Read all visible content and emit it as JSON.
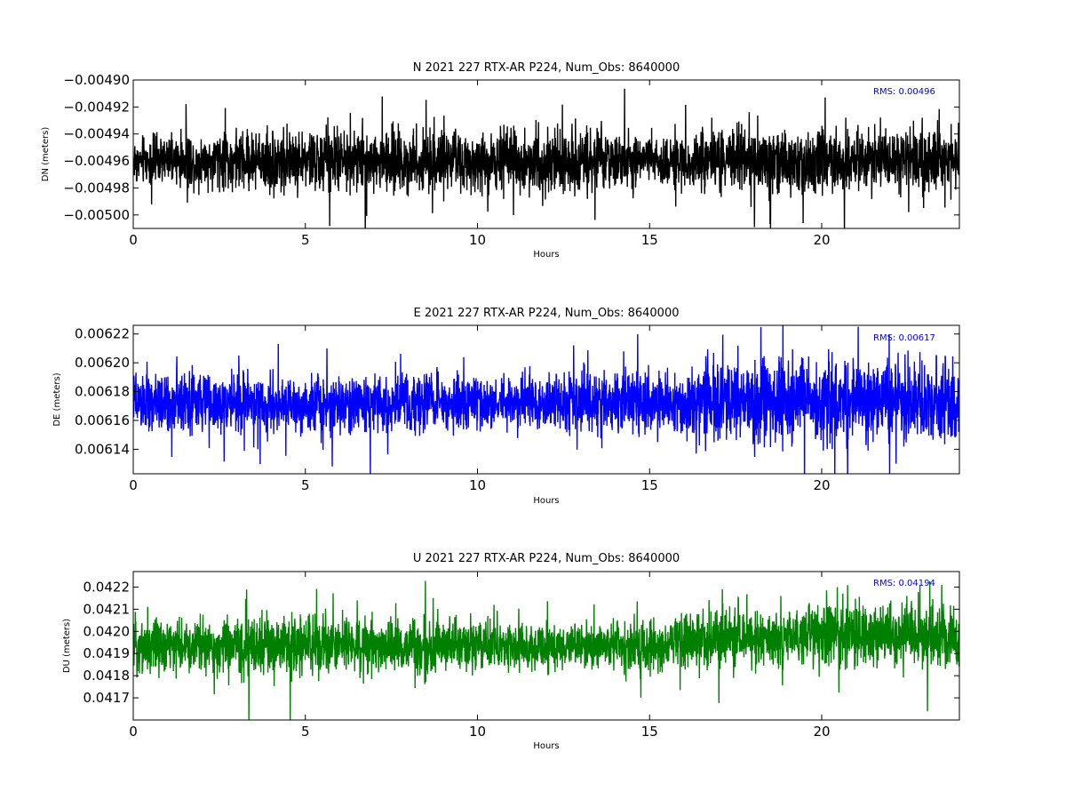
{
  "chart_data": [
    {
      "type": "line",
      "title": "N 2021 227 RTX-AR  P224, Num_Obs: 8640000",
      "xlabel": "Hours",
      "ylabel": "DN (meters)",
      "xlim": [
        0,
        24
      ],
      "ylim": [
        -0.00501,
        -0.0049
      ],
      "xticks": [
        0,
        5,
        10,
        15,
        20
      ],
      "xtick_labels": [
        "0",
        "5",
        "10",
        "15",
        "20"
      ],
      "yticks": [
        -0.005,
        -0.00498,
        -0.00496,
        -0.00494,
        -0.00492,
        -0.0049
      ],
      "ytick_labels": [
        "−0.00500",
        "−0.00498",
        "−0.00496",
        "−0.00494",
        "−0.00492",
        "−0.00490"
      ],
      "annotation": "RMS:  0.00496",
      "grid": false,
      "series": [
        {
          "color": "#000000",
          "x": [
            0,
            1,
            2,
            3,
            4,
            5,
            6,
            7,
            8,
            9,
            10,
            11,
            12,
            13,
            14,
            15,
            16,
            17,
            18,
            19,
            20,
            21,
            22,
            23,
            24
          ],
          "y": [
            -0.00496,
            -0.00496,
            -0.00496,
            -0.00496,
            -0.00496,
            -0.00496,
            -0.00496,
            -0.00496,
            -0.00496,
            -0.00496,
            -0.00496,
            -0.00496,
            -0.00496,
            -0.00496,
            -0.00496,
            -0.00496,
            -0.00496,
            -0.00496,
            -0.00496,
            -0.00496,
            -0.00496,
            -0.00496,
            -0.00496,
            -0.00496,
            -0.00496
          ],
          "spread": [
            2.4e-05,
            2.5e-05,
            2.6e-05,
            3e-05,
            3.1e-05,
            3.2e-05,
            3.1e-05,
            3.1e-05,
            3.1e-05,
            3.2e-05,
            3.1e-05,
            3.1e-05,
            3.2e-05,
            3.2e-05,
            3.1e-05,
            2.4e-05,
            2.6e-05,
            3.1e-05,
            3.2e-05,
            3.3e-05,
            3.3e-05,
            3e-05,
            3e-05,
            3.1e-05,
            3.2e-05
          ]
        }
      ]
    },
    {
      "type": "line",
      "title": "E 2021 227 RTX-AR  P224, Num_Obs: 8640000",
      "xlabel": "Hours",
      "ylabel": "DE (meters)",
      "xlim": [
        0,
        24
      ],
      "ylim": [
        0.006123,
        0.006226
      ],
      "xticks": [
        0,
        5,
        10,
        15,
        20
      ],
      "xtick_labels": [
        "0",
        "5",
        "10",
        "15",
        "20"
      ],
      "yticks": [
        0.00614,
        0.00616,
        0.00618,
        0.0062,
        0.00622
      ],
      "ytick_labels": [
        "0.00614",
        "0.00616",
        "0.00618",
        "0.00620",
        "0.00622"
      ],
      "annotation": "RMS:  0.00617",
      "grid": false,
      "series": [
        {
          "color": "#0000ff",
          "x": [
            0,
            1,
            2,
            3,
            4,
            5,
            6,
            7,
            8,
            9,
            10,
            11,
            12,
            13,
            14,
            15,
            16,
            17,
            18,
            19,
            20,
            21,
            22,
            23,
            24
          ],
          "y": [
            0.006172,
            0.006172,
            0.006172,
            0.006172,
            0.006172,
            0.006172,
            0.006172,
            0.006172,
            0.006172,
            0.006172,
            0.006172,
            0.006172,
            0.006172,
            0.006172,
            0.006172,
            0.006172,
            0.006172,
            0.006174,
            0.006174,
            0.006174,
            0.006174,
            0.006174,
            0.006174,
            0.006174,
            0.006174
          ],
          "spread": [
            2.6e-05,
            2.7e-05,
            2.7e-05,
            2.8e-05,
            2.7e-05,
            2.7e-05,
            2.6e-05,
            2.6e-05,
            2.7e-05,
            2.6e-05,
            2.5e-05,
            2.6e-05,
            2.6e-05,
            2.6e-05,
            2.8e-05,
            2.7e-05,
            2.9e-05,
            4e-05,
            4.2e-05,
            4e-05,
            3.8e-05,
            3.6e-05,
            4e-05,
            3.8e-05,
            4e-05
          ]
        }
      ]
    },
    {
      "type": "line",
      "title": "U 2021 227 RTX-AR  P224, Num_Obs: 8640000",
      "xlabel": "Hours",
      "ylabel": "DU (meters)",
      "xlim": [
        0,
        24
      ],
      "ylim": [
        0.0416,
        0.04227
      ],
      "xticks": [
        0,
        5,
        10,
        15,
        20
      ],
      "xtick_labels": [
        "0",
        "5",
        "10",
        "15",
        "20"
      ],
      "yticks": [
        0.0417,
        0.0418,
        0.0419,
        0.042,
        0.0421,
        0.0422
      ],
      "ytick_labels": [
        "0.0417",
        "0.0418",
        "0.0419",
        "0.0420",
        "0.0421",
        "0.0422"
      ],
      "annotation": "RMS:  0.04194",
      "grid": false,
      "series": [
        {
          "color": "#008000",
          "x": [
            0,
            1,
            2,
            3,
            4,
            5,
            6,
            7,
            8,
            9,
            10,
            11,
            12,
            13,
            14,
            15,
            16,
            17,
            18,
            19,
            20,
            21,
            22,
            23,
            24
          ],
          "y": [
            0.04194,
            0.04193,
            0.04193,
            0.04193,
            0.04193,
            0.04194,
            0.04194,
            0.04194,
            0.04193,
            0.04193,
            0.04193,
            0.04193,
            0.04193,
            0.04193,
            0.04193,
            0.04193,
            0.04195,
            0.04197,
            0.04198,
            0.04197,
            0.04198,
            0.04198,
            0.04198,
            0.04198,
            0.04196
          ],
          "spread": [
            0.00017,
            0.00017,
            0.00016,
            0.00017,
            0.00019,
            0.00019,
            0.00018,
            0.00017,
            0.00016,
            0.00016,
            0.00015,
            0.00014,
            0.00013,
            0.00013,
            0.00014,
            0.00016,
            0.00018,
            0.0002,
            0.00019,
            0.00019,
            0.00019,
            0.00018,
            0.0002,
            0.0002,
            0.00019
          ]
        }
      ]
    }
  ]
}
